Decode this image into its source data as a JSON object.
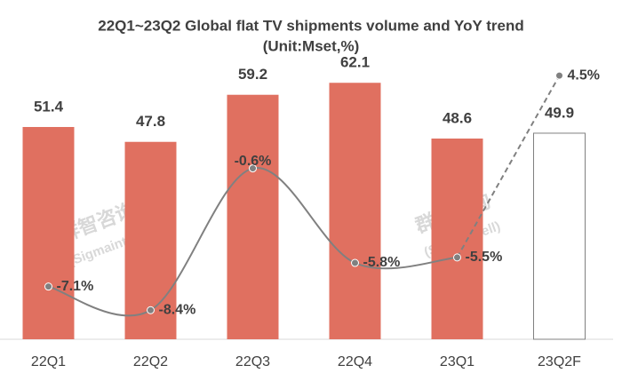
{
  "chart_data": {
    "type": "bar",
    "title": "22Q1~23Q2 Global flat TV shipments volume and YoY trend",
    "subtitle": "(Unit:Mset,%)",
    "categories": [
      "22Q1",
      "22Q2",
      "22Q3",
      "22Q4",
      "23Q1",
      "23Q2F"
    ],
    "series": [
      {
        "name": "Shipments",
        "color": "#e07060",
        "values": [
          51.4,
          47.8,
          59.2,
          62.1,
          48.6,
          49.9
        ],
        "forecast_last": true
      },
      {
        "name": "YoY",
        "type": "line",
        "axis": "y2",
        "color": "#808080",
        "values": [
          -7.1,
          -8.4,
          -0.6,
          -5.8,
          -5.5,
          4.5
        ],
        "value_labels": [
          "-7.1%",
          "-8.4%",
          "-0.6%",
          "-5.8%",
          "-5.5%",
          "4.5%"
        ],
        "forecast_last": true
      }
    ],
    "ylim": [
      0,
      70
    ],
    "y2lim": [
      -10,
      5.9
    ],
    "watermark": [
      "群智咨询",
      "(Sigmaintell)"
    ]
  }
}
